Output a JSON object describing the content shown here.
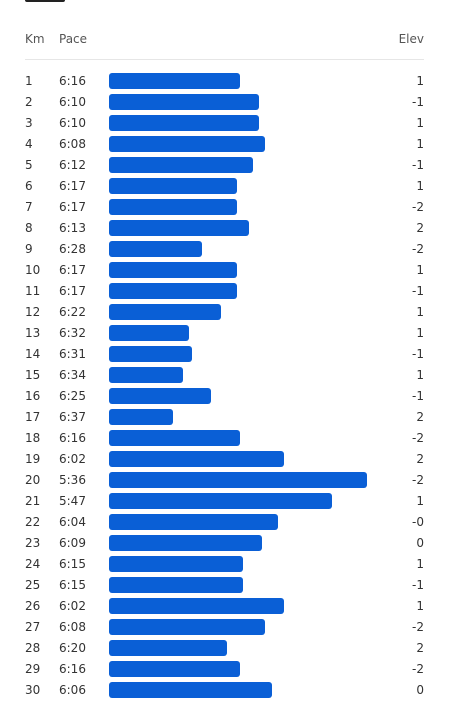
{
  "header": {
    "km": "Km",
    "pace": "Pace",
    "elev": "Elev"
  },
  "splits": {
    "km": [
      1,
      2,
      3,
      4,
      5,
      6,
      7,
      8,
      9,
      10,
      11,
      12,
      13,
      14,
      15,
      16,
      17,
      18,
      19,
      20,
      21,
      22,
      23,
      24,
      25,
      26,
      27,
      28,
      29,
      30
    ],
    "pace": [
      "6:16",
      "6:10",
      "6:10",
      "6:08",
      "6:12",
      "6:17",
      "6:17",
      "6:13",
      "6:28",
      "6:17",
      "6:17",
      "6:22",
      "6:32",
      "6:31",
      "6:34",
      "6:25",
      "6:37",
      "6:16",
      "6:02",
      "5:36",
      "5:47",
      "6:04",
      "6:09",
      "6:15",
      "6:15",
      "6:02",
      "6:08",
      "6:20",
      "6:16",
      "6:06"
    ],
    "elev": [
      "1",
      "-1",
      "1",
      "1",
      "-1",
      "1",
      "-2",
      "2",
      "-2",
      "1",
      "-1",
      "1",
      "1",
      "-1",
      "1",
      "-1",
      "2",
      "-2",
      "2",
      "-2",
      "1",
      "-0",
      "0",
      "1",
      "-1",
      "1",
      "-2",
      "2",
      "-2",
      "0"
    ]
  }
}
